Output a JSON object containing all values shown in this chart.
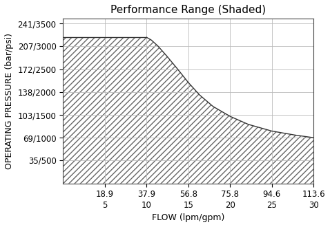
{
  "title": "Performance Range (Shaded)",
  "xlabel": "FLOW (lpm/gpm)",
  "ylabel": "OPERATING PRESSURE (bar/psi)",
  "x_ticks_lpm": [
    18.9,
    37.9,
    56.8,
    75.8,
    94.6,
    113.6
  ],
  "x_ticks_gpm": [
    5,
    10,
    15,
    20,
    25,
    30
  ],
  "y_ticks_bar": [
    35,
    69,
    103,
    138,
    172,
    207,
    241
  ],
  "y_ticks_psi": [
    500,
    1000,
    1500,
    2000,
    2500,
    3000,
    3500
  ],
  "xlim": [
    0,
    113.6
  ],
  "ylim": [
    0,
    248
  ],
  "curve_x": [
    37.9,
    40,
    43,
    47,
    52,
    56.8,
    62,
    68,
    75.8,
    84,
    94.6,
    105,
    113.6
  ],
  "curve_y": [
    220,
    216,
    207,
    192,
    172,
    152,
    133,
    116,
    101,
    89,
    79,
    73,
    69
  ],
  "flat_top_y": 220,
  "flat_top_x": 37.9,
  "flat_bottom_y": 69,
  "hatch_pattern": "////",
  "hatch_color": "#666666",
  "line_color": "#333333",
  "grid_color": "#bbbbbb",
  "background_color": "#ffffff",
  "title_fontsize": 11,
  "label_fontsize": 9,
  "tick_fontsize": 8.5
}
